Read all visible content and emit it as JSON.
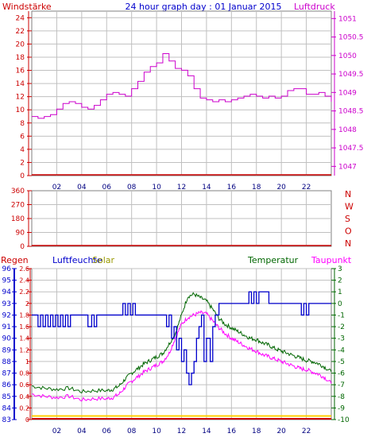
{
  "header": {
    "left": "Windstärke",
    "center": "24 hour graph day : 01 Januar 2015",
    "right": "Luftdruck"
  },
  "colors": {
    "wind": "#cc0000",
    "pressure": "#cc00cc",
    "direction_labels": "#cc0000",
    "regen": "#cc0000",
    "humidity": "#0000cc",
    "solar": "#999900",
    "temperature": "#006600",
    "dewpoint": "#ff00ff",
    "frame": "#808080",
    "grid": "#c0c0c0"
  },
  "panel2": {
    "direction_labels": [
      "N",
      "W",
      "S",
      "O",
      "N"
    ]
  },
  "panel3": {
    "labels": {
      "regen": "Regen",
      "humidity": "Luftfeuchte",
      "solar": "Solar",
      "temperature": "Temperatur",
      "dewpoint": "Taupunkt"
    }
  },
  "chart_data": [
    {
      "id": "wind_pressure",
      "type": "line",
      "x_ticks": [
        "02",
        "04",
        "06",
        "08",
        "10",
        "12",
        "14",
        "16",
        "18",
        "20",
        "22"
      ],
      "xlim": [
        0,
        24
      ],
      "y_left": {
        "ticks": [
          0,
          2,
          4,
          6,
          8,
          10,
          12,
          14,
          16,
          18,
          20,
          22,
          24
        ],
        "ylim": [
          0,
          25
        ]
      },
      "y_right": {
        "ticks": [
          1047,
          1047.5,
          1048,
          1048.5,
          1049,
          1049.5,
          1050,
          1050.5,
          1051
        ],
        "ylim": [
          1046.75,
          1051.2
        ]
      },
      "series": [
        {
          "name": "Windstärke",
          "axis": "left",
          "x": [
            0,
            24
          ],
          "values": [
            0,
            0
          ]
        },
        {
          "name": "Luftdruck",
          "axis": "right",
          "x": [
            0,
            0.5,
            1,
            1.5,
            2,
            2.5,
            3,
            3.5,
            4,
            4.5,
            5,
            5.5,
            6,
            6.5,
            7,
            7.5,
            8,
            8.5,
            9,
            9.5,
            10,
            10.5,
            11,
            11.5,
            12,
            12.5,
            13,
            13.5,
            14,
            14.5,
            15,
            15.5,
            16,
            16.5,
            17,
            17.5,
            18,
            18.5,
            19,
            19.5,
            20,
            20.5,
            21,
            21.5,
            22,
            22.5,
            23,
            23.5,
            24
          ],
          "values": [
            1048.35,
            1048.3,
            1048.35,
            1048.4,
            1048.55,
            1048.7,
            1048.75,
            1048.7,
            1048.6,
            1048.55,
            1048.65,
            1048.8,
            1048.95,
            1049.0,
            1048.95,
            1048.9,
            1049.1,
            1049.3,
            1049.55,
            1049.7,
            1049.8,
            1050.05,
            1049.85,
            1049.65,
            1049.6,
            1049.45,
            1049.1,
            1048.85,
            1048.8,
            1048.75,
            1048.8,
            1048.75,
            1048.8,
            1048.85,
            1048.9,
            1048.95,
            1048.9,
            1048.85,
            1048.9,
            1048.85,
            1048.9,
            1049.05,
            1049.1,
            1049.1,
            1048.95,
            1048.95,
            1049.0,
            1048.9,
            1048.75
          ]
        }
      ]
    },
    {
      "id": "wind_direction",
      "type": "scatter",
      "xlim": [
        0,
        24
      ],
      "y_left": {
        "ticks": [
          0,
          90,
          180,
          270,
          360
        ],
        "ylim": [
          0,
          360
        ]
      },
      "series": [
        {
          "name": "Windrichtung",
          "x": [],
          "values": []
        }
      ]
    },
    {
      "id": "climate",
      "type": "line",
      "x_ticks": [
        "02",
        "04",
        "06",
        "08",
        "10",
        "12",
        "14",
        "16",
        "18",
        "20",
        "22"
      ],
      "xlim": [
        0,
        24
      ],
      "y_humidity": {
        "ticks": [
          83,
          84,
          85,
          86,
          87,
          88,
          89,
          90,
          91,
          92,
          93,
          94,
          95,
          96
        ],
        "ylim": [
          83,
          96
        ]
      },
      "y_regen": {
        "ticks": [
          0,
          0.2,
          0.4,
          0.6,
          0.8,
          1,
          1.2,
          1.4,
          1.6,
          1.8,
          2,
          2.2,
          2.4,
          2.6
        ],
        "ylim": [
          0,
          2.6
        ]
      },
      "y_temperature": {
        "ticks": [
          -10,
          -9,
          -8,
          -7,
          -6,
          -5,
          -4,
          -3,
          -2,
          -1,
          0,
          1,
          2,
          3
        ],
        "ylim": [
          -10,
          3
        ]
      },
      "series": [
        {
          "name": "Regen",
          "axis": "regen",
          "x": [
            0,
            24
          ],
          "values": [
            0,
            0
          ]
        },
        {
          "name": "Solar",
          "axis": "regen",
          "x": [
            0,
            24
          ],
          "values": [
            0.02,
            0.02
          ]
        },
        {
          "name": "Luftfeuchte",
          "axis": "humidity",
          "x": [
            0,
            0.3,
            0.5,
            0.7,
            0.9,
            1.1,
            1.3,
            1.5,
            1.7,
            1.9,
            2.1,
            2.3,
            2.5,
            2.7,
            2.9,
            3.1,
            3.3,
            3.5,
            3.7,
            3.9,
            4.2,
            4.5,
            4.8,
            5.0,
            5.2,
            5.4,
            6.0,
            7.0,
            7.3,
            7.5,
            7.7,
            7.9,
            8.1,
            8.3,
            9.0,
            10.0,
            10.5,
            10.8,
            11.0,
            11.2,
            11.4,
            11.6,
            11.8,
            12.0,
            12.2,
            12.4,
            12.6,
            12.8,
            13.0,
            13.2,
            13.4,
            13.6,
            13.8,
            14.0,
            14.3,
            14.5,
            14.7,
            15.0,
            15.3,
            15.6,
            16.0,
            17.0,
            17.4,
            17.6,
            17.8,
            18.0,
            18.2,
            19.0,
            20.0,
            21.0,
            21.6,
            21.8,
            22.0,
            22.2,
            23.0,
            24.0
          ],
          "values": [
            92,
            92,
            91,
            92,
            91,
            92,
            91,
            92,
            91,
            92,
            91,
            92,
            91,
            92,
            91,
            92,
            92,
            92,
            92,
            92,
            92,
            91,
            92,
            91,
            92,
            92,
            92,
            92,
            93,
            92,
            93,
            92,
            93,
            92,
            92,
            92,
            92,
            91,
            92,
            90,
            91,
            89,
            90,
            88,
            89,
            87,
            86,
            87,
            88,
            90,
            91,
            92,
            88,
            90,
            88,
            91,
            92,
            93,
            93,
            93,
            93,
            93,
            94,
            93,
            94,
            93,
            94,
            93,
            93,
            93,
            92,
            93,
            92,
            93,
            93,
            93
          ]
        },
        {
          "name": "Temperatur",
          "axis": "temperature",
          "x": [
            0,
            1,
            2,
            3,
            4,
            5,
            6,
            6.5,
            7,
            7.5,
            8,
            8.5,
            9,
            9.5,
            10,
            10.5,
            11,
            11.5,
            12,
            12.5,
            13,
            13.5,
            14,
            14.5,
            15,
            15.5,
            16,
            16.5,
            17,
            17.5,
            18,
            18.5,
            19,
            19.5,
            20,
            20.5,
            21,
            21.5,
            22,
            22.5,
            23,
            23.5,
            24
          ],
          "values": [
            -7.1,
            -7.3,
            -7.4,
            -7.3,
            -7.6,
            -7.5,
            -7.5,
            -7.4,
            -7.1,
            -6.5,
            -6.0,
            -5.6,
            -5.2,
            -4.9,
            -4.6,
            -4.3,
            -3.5,
            -2.6,
            -1.0,
            0.6,
            0.8,
            0.5,
            0.2,
            -0.5,
            -1.3,
            -1.8,
            -2.1,
            -2.4,
            -2.7,
            -3.0,
            -3.1,
            -3.4,
            -3.6,
            -3.9,
            -4.1,
            -4.3,
            -4.5,
            -4.7,
            -4.9,
            -5.0,
            -5.2,
            -5.5,
            -5.9
          ]
        },
        {
          "name": "Taupunkt",
          "axis": "temperature",
          "x": [
            0,
            1,
            2,
            3,
            4,
            5,
            6,
            6.5,
            7,
            7.5,
            8,
            8.5,
            9,
            9.5,
            10,
            10.5,
            11,
            11.5,
            12,
            12.5,
            13,
            13.5,
            14,
            14.5,
            15,
            15.5,
            16,
            16.5,
            17,
            17.5,
            18,
            18.5,
            19,
            19.5,
            20,
            20.5,
            21,
            21.5,
            22,
            22.5,
            23,
            23.5,
            24
          ],
          "values": [
            -7.8,
            -8.0,
            -8.1,
            -8.0,
            -8.3,
            -8.2,
            -8.2,
            -8.1,
            -7.8,
            -7.2,
            -6.7,
            -6.3,
            -5.9,
            -5.6,
            -5.3,
            -5.0,
            -4.3,
            -3.0,
            -1.8,
            -1.2,
            -1.0,
            -0.8,
            -0.9,
            -1.5,
            -2.1,
            -2.6,
            -3.0,
            -3.3,
            -3.6,
            -3.9,
            -4.1,
            -4.4,
            -4.6,
            -4.8,
            -5.0,
            -5.2,
            -5.4,
            -5.6,
            -5.7,
            -5.9,
            -6.1,
            -6.4,
            -6.9
          ]
        }
      ]
    }
  ]
}
